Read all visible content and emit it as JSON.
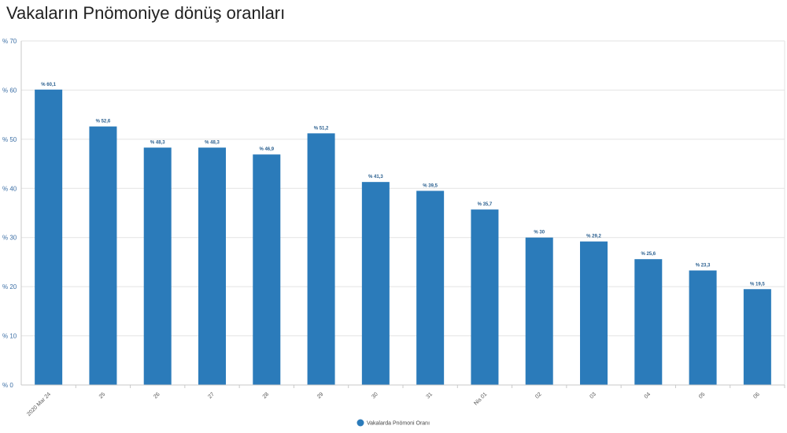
{
  "chart_data": {
    "type": "bar",
    "title": "Vakaların Pnömoniye dönüş oranları",
    "categories": [
      "2020 Mar 24",
      "25",
      "26",
      "27",
      "28",
      "29",
      "30",
      "31",
      "Nis 01",
      "02",
      "03",
      "04",
      "05",
      "06"
    ],
    "series": [
      {
        "name": "Vakalarda Pnömoni Oranı",
        "values": [
          60.1,
          52.6,
          48.3,
          48.3,
          46.9,
          51.2,
          41.3,
          39.5,
          35.7,
          30,
          29.2,
          25.6,
          23.3,
          19.5
        ],
        "labels": [
          "% 60,1",
          "% 52,6",
          "% 48,3",
          "% 48,3",
          "% 46,9",
          "% 51,2",
          "% 41,3",
          "% 39,5",
          "% 35,7",
          "% 30",
          "% 29,2",
          "% 25,6",
          "% 23,3",
          "% 19,5"
        ]
      }
    ],
    "ylim": [
      0,
      70
    ],
    "yticks": [
      0,
      10,
      20,
      30,
      40,
      50,
      60,
      70
    ],
    "ytick_labels": [
      "% 0",
      "% 10",
      "% 20",
      "% 30",
      "% 40",
      "% 50",
      "% 60",
      "% 70"
    ],
    "grid": true,
    "legend_position": "bottom-center",
    "bar_color": "#2b7bba"
  }
}
